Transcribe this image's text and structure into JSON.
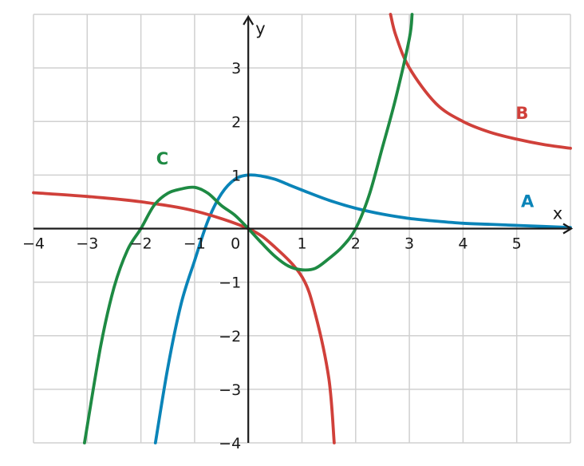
{
  "chart_data": {
    "type": "line",
    "title": "",
    "xlabel": "x",
    "ylabel": "y",
    "xlim": [
      -4,
      6
    ],
    "ylim": [
      -4,
      4
    ],
    "grid": true,
    "x_ticks": [
      -4,
      -3,
      -2,
      -1,
      0,
      1,
      2,
      3,
      4,
      5
    ],
    "y_ticks": [
      -4,
      -3,
      -2,
      -1,
      1,
      2,
      3
    ],
    "x_tick_labels": [
      "−4",
      "−3",
      "−2",
      "−1",
      "0",
      "1",
      "2",
      "3",
      "4",
      "5"
    ],
    "y_tick_labels": [
      "−4",
      "−3",
      "−2",
      "−1",
      "1",
      "2",
      "3"
    ],
    "series": [
      {
        "name": "A",
        "color": "#0a84b8",
        "x": [
          -1.73,
          -1.5,
          -1.25,
          -1.0,
          -0.75,
          -0.5,
          -0.25,
          0.0,
          0.25,
          0.5,
          0.75,
          1.0,
          1.5,
          2.0,
          2.5,
          3.0,
          3.5,
          4.0,
          4.5,
          5.0,
          5.5,
          6.0
        ],
        "y": [
          -4.0,
          -2.6,
          -1.4,
          -0.6,
          0.15,
          0.65,
          0.92,
          1.0,
          0.98,
          0.92,
          0.82,
          0.72,
          0.53,
          0.38,
          0.27,
          0.19,
          0.14,
          0.1,
          0.08,
          0.06,
          0.04,
          0.02
        ]
      },
      {
        "name": "B",
        "color": "#d0403a",
        "x": [
          -4.0,
          -3.0,
          -2.0,
          -1.0,
          0.0,
          0.5,
          1.0,
          1.25,
          1.5,
          1.6
        ],
        "y": [
          0.67,
          0.6,
          0.5,
          0.33,
          0.0,
          -0.35,
          -0.9,
          -1.6,
          -2.8,
          -4.0
        ]
      },
      {
        "name": "B",
        "color": "#d0403a",
        "x": [
          2.65,
          2.75,
          3.0,
          3.5,
          4.0,
          4.5,
          5.0,
          5.5,
          6.0
        ],
        "y": [
          4.0,
          3.6,
          3.0,
          2.33,
          2.0,
          1.8,
          1.67,
          1.57,
          1.5
        ]
      },
      {
        "name": "C",
        "color": "#1e8a43",
        "x": [
          -3.05,
          -2.75,
          -2.5,
          -2.25,
          -2.0,
          -1.75,
          -1.5,
          -1.25,
          -1.0,
          -0.75,
          -0.5,
          -0.25,
          0.0,
          0.25,
          0.5,
          0.75,
          1.0,
          1.25,
          1.5,
          1.75,
          2.0,
          2.25,
          2.5,
          2.75,
          3.0,
          3.05
        ],
        "y": [
          -4.0,
          -2.2,
          -1.1,
          -0.4,
          0.0,
          0.44,
          0.66,
          0.74,
          0.77,
          0.66,
          0.43,
          0.25,
          0.0,
          -0.27,
          -0.52,
          -0.7,
          -0.77,
          -0.74,
          -0.56,
          -0.34,
          0.0,
          0.62,
          1.52,
          2.45,
          3.55,
          4.0
        ]
      }
    ],
    "curve_labels": [
      {
        "text": "A",
        "x": 5.2,
        "y": 0.4
      },
      {
        "text": "B",
        "x": 5.1,
        "y": 2.05
      },
      {
        "text": "C",
        "x": -1.6,
        "y": 1.2
      }
    ]
  }
}
